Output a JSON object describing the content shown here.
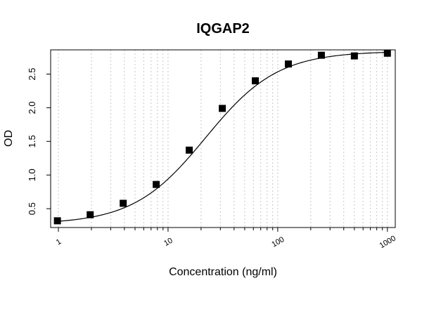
{
  "chart_data": {
    "type": "scatter",
    "title": "IQGAP2",
    "xlabel": "Concentration (ng/ml)",
    "ylabel": "OD",
    "x_scale": "log",
    "xlim": [
      0.85,
      1180
    ],
    "ylim": [
      0.22,
      2.86
    ],
    "x_ticks": [
      1,
      10,
      100,
      1000
    ],
    "x_tick_labels": [
      "1",
      "10",
      "100",
      "1000"
    ],
    "y_ticks": [
      0.5,
      1.0,
      1.5,
      2.0,
      2.5
    ],
    "y_tick_labels": [
      "0.5",
      "1.0",
      "1.5",
      "2.0",
      "2.5"
    ],
    "grid": "vertical dotted at log minor ticks",
    "legend": "none",
    "series": [
      {
        "x": [
          0.98,
          1.95,
          3.9,
          7.8,
          15.6,
          31.25,
          62.5,
          125,
          250,
          500,
          1000
        ],
        "y": [
          0.32,
          0.41,
          0.58,
          0.86,
          1.37,
          1.99,
          2.4,
          2.65,
          2.78,
          2.77,
          2.81
        ],
        "fit": "4PL curve"
      }
    ]
  }
}
